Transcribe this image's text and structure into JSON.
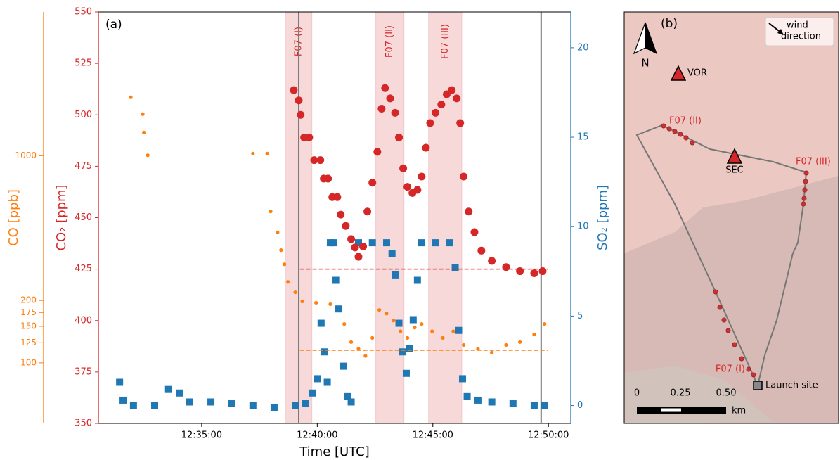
{
  "chart_data": {
    "type": "scatter",
    "panel": "(a)",
    "xlabel": "Time [UTC]",
    "xlim": [
      "12:30:32",
      "12:50:58"
    ],
    "xticks": [
      "12:35:00",
      "12:40:00",
      "12:45:00",
      "12:50:00"
    ],
    "ylabel": "CO₂ [ppm]",
    "ylim": [
      350,
      550
    ],
    "yticks": [
      350,
      375,
      400,
      425,
      450,
      475,
      500,
      525,
      550
    ],
    "y2label": "SO₂ [ppm]",
    "y2lim": [
      -1,
      22
    ],
    "y2ticks": [
      0,
      5,
      10,
      15,
      20
    ],
    "y3label": "CO [ppb]",
    "y3lim": [
      51,
      4940
    ],
    "y3ticks": [
      100,
      125,
      150,
      175,
      200,
      1000
    ],
    "y3scale": "log",
    "axis_colors": {
      "y": "#d62728",
      "y2": "#1f77b4",
      "y3": "#ff7f0e"
    },
    "spans": [
      {
        "label": "F07 (I)",
        "x": [
          "12:38:37",
          "12:39:46"
        ]
      },
      {
        "label": "F07 (II)",
        "x": [
          "12:42:32",
          "12:43:45"
        ]
      },
      {
        "label": "F07 (III)",
        "x": [
          "12:44:49",
          "12:46:15"
        ]
      }
    ],
    "vlines": [
      "12:39:12",
      "12:49:41"
    ],
    "baselines": [
      {
        "axis": "y",
        "value": 425,
        "color": "#d62728",
        "x": [
          "12:39:15",
          "12:49:58"
        ]
      },
      {
        "axis": "y3",
        "value": 115,
        "color": "#ff7f0e",
        "x": [
          "12:39:15",
          "12:49:58"
        ]
      }
    ],
    "series": [
      {
        "axis": "y3",
        "color": "#ff7f0e",
        "marker": "dot",
        "x": [
          "12:31:56",
          "12:32:27",
          "12:32:30",
          "12:32:40",
          "12:37:13",
          "12:37:50",
          "12:37:59",
          "12:38:17",
          "12:38:26",
          "12:38:35",
          "12:38:44",
          "12:39:03",
          "12:39:21",
          "12:39:57",
          "12:40:34",
          "12:40:52",
          "12:41:10",
          "12:41:28",
          "12:41:47",
          "12:42:05",
          "12:42:23",
          "12:42:41",
          "12:43:00",
          "12:43:18",
          "12:43:36",
          "12:43:54",
          "12:44:13",
          "12:44:31",
          "12:44:58",
          "12:45:26",
          "12:45:53",
          "12:46:20",
          "12:46:57",
          "12:47:33",
          "12:48:10",
          "12:48:46",
          "12:49:23",
          "12:49:50"
        ],
        "values": [
          1914,
          1587,
          1294,
          1005,
          1024,
          1024,
          538,
          426,
          350,
          299,
          246,
          219,
          198,
          195,
          192,
          180,
          154,
          126,
          117,
          108,
          132,
          180,
          173,
          160,
          142,
          132,
          148,
          154,
          142,
          132,
          142,
          122,
          117,
          112,
          122,
          126,
          137,
          154
        ]
      },
      {
        "axis": "y2",
        "color": "#1f77b4",
        "marker": "square",
        "x": [
          "12:31:27",
          "12:31:36",
          "12:32:03",
          "12:32:58",
          "12:33:34",
          "12:34:02",
          "12:34:29",
          "12:35:24",
          "12:36:18",
          "12:37:13",
          "12:38:08",
          "12:39:03",
          "12:39:30",
          "12:39:48",
          "12:40:01",
          "12:40:10",
          "12:40:19",
          "12:40:26",
          "12:40:34",
          "12:40:43",
          "12:40:48",
          "12:40:56",
          "12:41:07",
          "12:41:19",
          "12:41:28",
          "12:41:47",
          "12:42:23",
          "12:43:00",
          "12:43:14",
          "12:43:23",
          "12:43:32",
          "12:43:42",
          "12:43:51",
          "12:44:00",
          "12:44:09",
          "12:44:20",
          "12:44:31",
          "12:45:07",
          "12:45:44",
          "12:45:58",
          "12:46:07",
          "12:46:17",
          "12:46:29",
          "12:46:57",
          "12:47:33",
          "12:48:28",
          "12:49:23",
          "12:49:50"
        ],
        "values": [
          1.3,
          0.3,
          0,
          0,
          0.9,
          0.7,
          0.2,
          0.2,
          0.1,
          0,
          -0.1,
          0,
          0.1,
          0.7,
          1.5,
          4.6,
          3,
          1.3,
          9.1,
          9.1,
          7,
          5.4,
          2.2,
          0.5,
          0.2,
          9.1,
          9.1,
          9.1,
          8.5,
          7.3,
          4.6,
          3,
          1.8,
          3.2,
          4.8,
          7,
          9.1,
          9.1,
          9.1,
          7.7,
          4.2,
          1.5,
          0.5,
          0.3,
          0.2,
          0.1,
          0,
          0
        ]
      },
      {
        "axis": "y",
        "color": "#d62728",
        "marker": "circle",
        "x": [
          "12:38:59",
          "12:39:12",
          "12:39:17",
          "12:39:26",
          "12:39:39",
          "12:39:52",
          "12:40:08",
          "12:40:17",
          "12:40:28",
          "12:40:39",
          "12:40:52",
          "12:41:01",
          "12:41:14",
          "12:41:28",
          "12:41:38",
          "12:41:47",
          "12:41:59",
          "12:42:10",
          "12:42:23",
          "12:42:36",
          "12:42:47",
          "12:42:56",
          "12:43:09",
          "12:43:22",
          "12:43:32",
          "12:43:43",
          "12:43:54",
          "12:44:07",
          "12:44:20",
          "12:44:31",
          "12:44:42",
          "12:44:53",
          "12:45:07",
          "12:45:22",
          "12:45:36",
          "12:45:49",
          "12:46:02",
          "12:46:11",
          "12:46:20",
          "12:46:33",
          "12:46:48",
          "12:47:06",
          "12:47:33",
          "12:48:10",
          "12:48:46",
          "12:49:23",
          "12:49:45"
        ],
        "values": [
          512,
          507,
          500,
          489,
          489,
          478,
          478,
          469,
          469,
          460,
          460,
          451.5,
          446,
          439.6,
          435.5,
          431,
          436,
          453,
          467,
          482,
          503,
          513,
          508,
          501,
          489,
          474,
          465,
          462,
          463.5,
          470,
          484,
          496,
          501,
          505,
          510,
          512,
          508,
          496,
          470,
          453,
          443,
          434,
          429,
          426,
          424,
          423,
          424
        ]
      }
    ]
  },
  "map": {
    "panel": "(b)",
    "legend": [
      "wind",
      "direction"
    ],
    "north": "N",
    "sites": [
      "VOR",
      "SEC",
      "Launch site"
    ],
    "flights": [
      "F07 (I)",
      "F07 (II)",
      "F07 (III)"
    ],
    "scale": {
      "ticks": [
        "0",
        "0.25",
        "0.50"
      ],
      "unit": "km"
    }
  }
}
